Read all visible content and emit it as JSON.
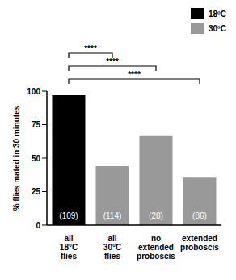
{
  "chart_data": {
    "type": "bar",
    "y_label": "% flies mated in 30 minutes",
    "categories": [
      "all 18°C flies",
      "all 30°C flies",
      "no extended proboscis",
      "extended proboscis"
    ],
    "series": [
      {
        "name": "18ºC",
        "color": "#000000",
        "values": [
          97,
          null,
          null,
          null
        ]
      },
      {
        "name": "30ºC",
        "color": "#999999",
        "values": [
          null,
          44,
          67,
          36
        ]
      }
    ],
    "n_labels": [
      "(109)",
      "(114)",
      "(28)",
      "(86)"
    ],
    "annotations": [
      {
        "from": "all 18°C flies",
        "to": "all 30°C flies",
        "text": "****"
      },
      {
        "from": "all 18°C flies",
        "to": "no extended proboscis",
        "text": "****"
      },
      {
        "from": "all 18°C flies",
        "to": "extended proboscis",
        "text": "****"
      }
    ],
    "ylim": [
      0,
      100
    ],
    "yticks": [
      0,
      25,
      50,
      75,
      100
    ],
    "grid": false,
    "legend": "top right"
  }
}
